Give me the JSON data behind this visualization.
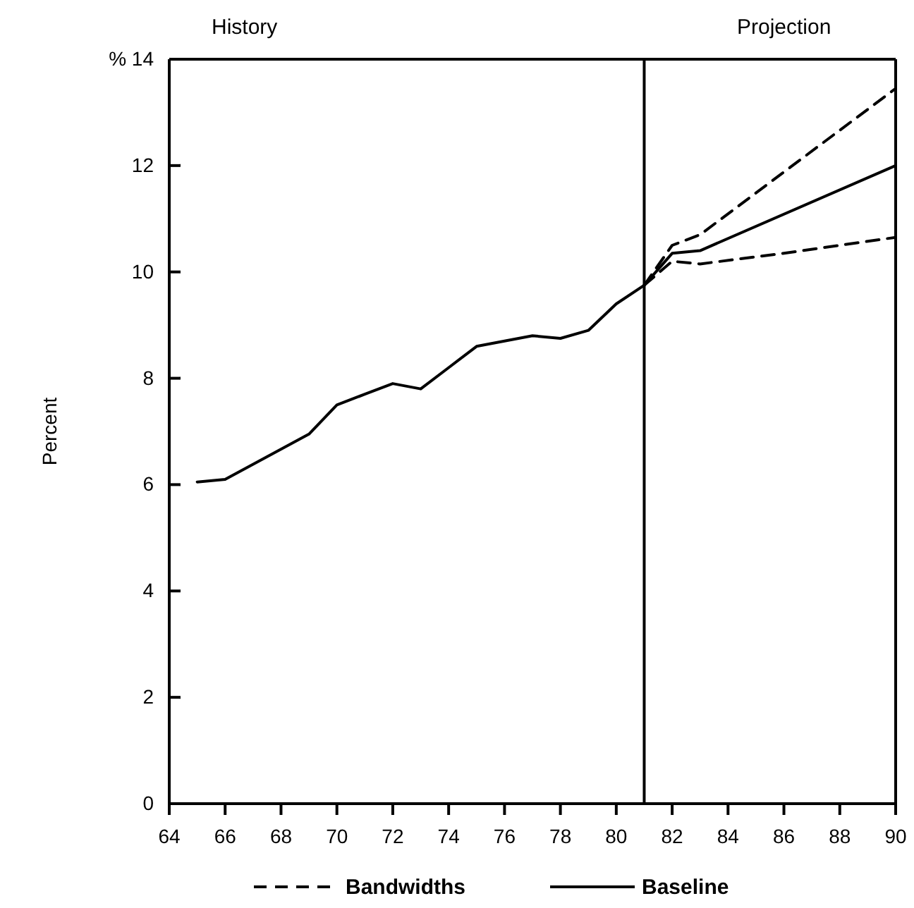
{
  "chart_data": {
    "type": "line",
    "ylabel": "Percent",
    "xlim": [
      64,
      90
    ],
    "xticks": [
      64,
      66,
      68,
      70,
      72,
      74,
      76,
      78,
      80,
      82,
      84,
      86,
      88,
      90
    ],
    "ylim": [
      0,
      14
    ],
    "yticks": [
      0,
      2,
      4,
      6,
      8,
      10,
      12,
      {
        "value": 14,
        "label": "% 14"
      }
    ],
    "series": [
      {
        "name": "Bandwidths",
        "color": "#000000",
        "line_style": "dashed",
        "x": [
          81,
          82,
          83,
          90
        ],
        "values": [
          9.75,
          10.5,
          10.7,
          13.45
        ]
      },
      {
        "color": "#000000",
        "line_style": "dashed",
        "x": [
          81,
          82,
          83,
          86,
          90
        ],
        "values": [
          9.75,
          10.2,
          10.15,
          10.35,
          10.65
        ]
      },
      {
        "name": "Baseline",
        "color": "#000000",
        "line_style": "solid",
        "x": [
          65,
          66,
          69,
          70,
          71,
          72,
          73,
          74,
          75,
          76,
          77,
          78,
          79,
          80,
          81,
          82,
          83,
          90
        ],
        "values": [
          6.05,
          6.1,
          6.95,
          7.5,
          7.7,
          7.9,
          7.8,
          8.2,
          8.6,
          8.7,
          8.8,
          8.75,
          8.9,
          9.4,
          9.75,
          10.35,
          10.4,
          12.0
        ]
      }
    ],
    "ref_lines": [
      {
        "axis": "x",
        "value": 81,
        "color": "#000000"
      }
    ],
    "annotations": [
      "History",
      "Projection"
    ],
    "grid": false,
    "legend": "bottom",
    "marker": "none"
  }
}
